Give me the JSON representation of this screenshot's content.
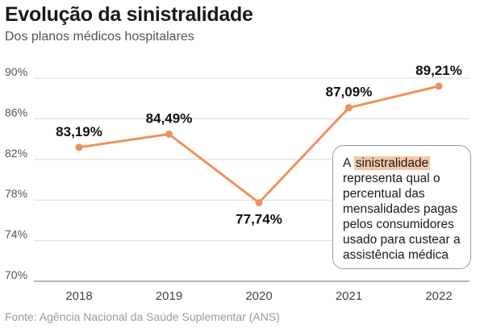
{
  "title": "Evolução da sinistralidade",
  "subtitle": "Dos planos médicos hospitalares",
  "source": "Fonte: Agência Nacional da Saúde Suplementar (ANS)",
  "note": {
    "prefix": "A",
    "highlight": "sinistralidade",
    "text": "representa qual o percentual das mensalidades pagas pelos consumidores usado para custear a assistência médica"
  },
  "colors": {
    "line": "#f0915a",
    "highlight": "#f6c7a4",
    "grid": "#d9d9d9"
  },
  "chart_data": {
    "type": "line",
    "categories": [
      "2018",
      "2019",
      "2020",
      "2021",
      "2022"
    ],
    "values": [
      83.19,
      84.49,
      77.74,
      87.09,
      89.21
    ],
    "data_labels": [
      "83,19%",
      "84,49%",
      "77,74%",
      "87,09%",
      "89,21%"
    ],
    "y_ticks": [
      70,
      74,
      78,
      82,
      86,
      90
    ],
    "y_tick_labels": [
      "70%",
      "74%",
      "78%",
      "82%",
      "86%",
      "90%"
    ],
    "ylim": [
      70,
      90
    ],
    "grid": true
  }
}
